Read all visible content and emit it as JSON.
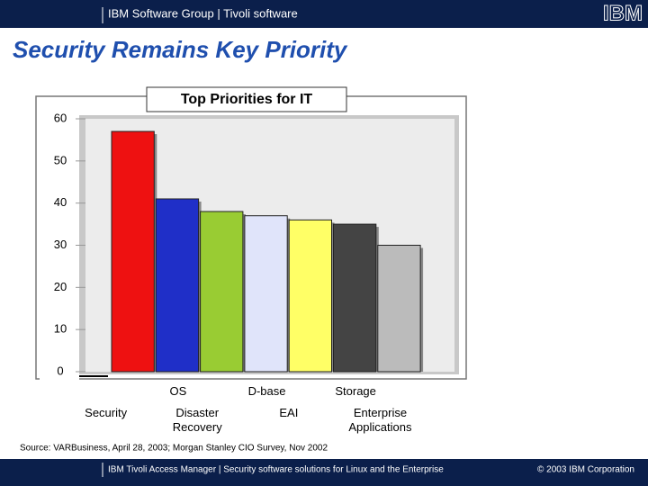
{
  "header": {
    "text": "IBM Software Group  |  Tivoli software",
    "logo": "IBM"
  },
  "slide_title": "Security Remains Key Priority",
  "chart_data": {
    "type": "bar",
    "title": "Top Priorities for IT",
    "categories": [
      "Security",
      "OS",
      "Disaster Recovery",
      "D-base",
      "EAI",
      "Storage",
      "Enterprise Applications"
    ],
    "values": [
      57,
      41,
      38,
      37,
      36,
      35,
      30
    ],
    "colors": [
      "#ee1111",
      "#1f2fc8",
      "#99cc33",
      "#e0e4fa",
      "#ffff66",
      "#444444",
      "#bbbbbb"
    ],
    "ylim": [
      0,
      60
    ],
    "yticks": [
      0,
      10,
      20,
      30,
      40,
      50,
      60
    ],
    "grid": false
  },
  "source": "Source: VARBusiness, April 28, 2003; Morgan Stanley CIO Survey, Nov 2002",
  "footer": {
    "text": "IBM Tivoli Access Manager  |  Security software solutions for Linux and the Enterprise",
    "copyright": "© 2003 IBM Corporation"
  }
}
